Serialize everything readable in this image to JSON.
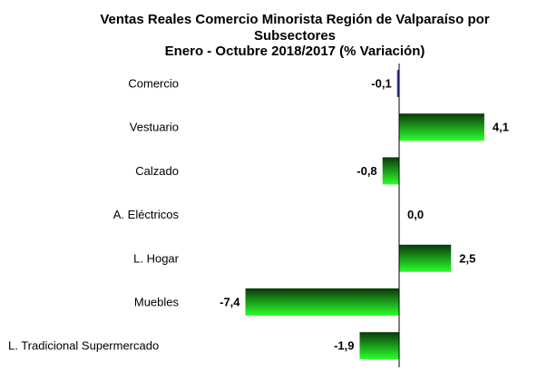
{
  "chart_data": {
    "type": "bar",
    "orientation": "horizontal",
    "title_lines": [
      "Ventas Reales Comercio Minorista  Región de Valparaíso por",
      "Subsectores",
      "Enero - Octubre  2018/2017 (% Variación)"
    ],
    "categories": [
      "Comercio",
      "Vestuario",
      "Calzado",
      "A. Eléctricos",
      "L. Hogar",
      "Muebles",
      "L. Tradicional Supermercado"
    ],
    "values": [
      -0.1,
      4.1,
      -0.8,
      0.0,
      2.5,
      -7.4,
      -1.9
    ],
    "value_labels": [
      "-0,1",
      "4,1",
      "-0,8",
      "0,0",
      "2,5",
      "-7,4",
      "-1,9"
    ],
    "xlim": [
      -7.4,
      4.1
    ],
    "grid": false,
    "legend": false,
    "colors": {
      "bar_dark": "#0a3a0a",
      "bar_light": "#2cff2c",
      "first_bar": "#3a3aa8",
      "axis": "#000000"
    }
  }
}
